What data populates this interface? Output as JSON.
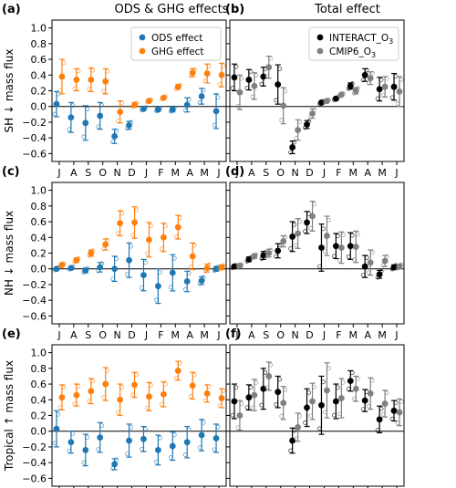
{
  "months": [
    "J",
    "A",
    "S",
    "O",
    "N",
    "D",
    "J",
    "F",
    "M",
    "A",
    "M",
    "J"
  ],
  "colors": {
    "ods": "#1f77b4",
    "ghg": "#ff7f0e",
    "interact": "#000000",
    "cmip6": "#808080"
  },
  "col_titles": {
    "left": "ODS & GHG effects",
    "right": "Total effect"
  },
  "legend_left": {
    "ods": "ODS effect",
    "ghg": "GHG effect"
  },
  "legend_right": {
    "interact": "INTERACT_O",
    "interact_sub": "3",
    "cmip6": "CMIP6_O",
    "cmip6_sub": "3"
  },
  "chart_data": [
    {
      "type": "scatter",
      "label": "(a)",
      "ylabel": "SH ↓ mass flux",
      "ylim": [
        -0.7,
        1.1
      ],
      "yticks": [
        -0.6,
        -0.4,
        -0.2,
        0.0,
        0.2,
        0.4,
        0.6,
        0.8,
        1.0
      ],
      "series": [
        {
          "name": "ODS effect",
          "means": [
            0.03,
            -0.14,
            -0.21,
            -0.12,
            -0.38,
            -0.24,
            -0.03,
            -0.04,
            -0.04,
            0.02,
            0.13,
            -0.06
          ],
          "err": [
            0.16,
            0.19,
            0.22,
            0.17,
            0.09,
            0.05,
            0.02,
            0.02,
            0.03,
            0.09,
            0.1,
            0.22
          ]
        },
        {
          "name": "GHG effect",
          "means": [
            0.38,
            0.34,
            0.34,
            0.32,
            -0.07,
            0.02,
            0.07,
            0.11,
            0.25,
            0.43,
            0.42,
            0.4
          ],
          "err": [
            0.22,
            0.14,
            0.15,
            0.16,
            0.14,
            0.03,
            0.02,
            0.02,
            0.03,
            0.05,
            0.12,
            0.15
          ]
        }
      ]
    },
    {
      "type": "scatter",
      "label": "(b)",
      "ylim": [
        -0.7,
        1.1
      ],
      "yticks": [
        -0.6,
        -0.4,
        -0.2,
        0.0,
        0.2,
        0.4,
        0.6,
        0.8,
        1.0
      ],
      "series": [
        {
          "name": "INTERACT_O3",
          "means": [
            0.37,
            0.34,
            0.38,
            0.28,
            -0.52,
            -0.23,
            0.05,
            0.1,
            0.26,
            0.4,
            0.22,
            0.25
          ],
          "err": [
            0.17,
            0.13,
            0.12,
            0.25,
            0.08,
            0.05,
            0.02,
            0.02,
            0.04,
            0.08,
            0.15,
            0.17
          ]
        },
        {
          "name": "CMIP6_O3",
          "means": [
            0.18,
            0.26,
            0.5,
            0.01,
            -0.3,
            -0.09,
            0.07,
            0.15,
            0.2,
            0.36,
            0.25,
            0.19
          ],
          "err": [
            0.22,
            0.17,
            0.14,
            0.23,
            0.13,
            0.06,
            0.02,
            0.02,
            0.04,
            0.08,
            0.13,
            0.19
          ]
        }
      ]
    },
    {
      "type": "scatter",
      "label": "(c)",
      "ylabel": "NH ↓ mass flux",
      "ylim": [
        -0.7,
        1.1
      ],
      "yticks": [
        -0.6,
        -0.4,
        -0.2,
        0.0,
        0.2,
        0.4,
        0.6,
        0.8,
        1.0
      ],
      "series": [
        {
          "name": "ODS effect",
          "means": [
            0.0,
            0.01,
            -0.02,
            0.02,
            0.0,
            0.11,
            -0.08,
            -0.22,
            -0.05,
            -0.16,
            -0.15,
            0.0
          ],
          "err": [
            0.02,
            0.02,
            0.03,
            0.06,
            0.16,
            0.22,
            0.2,
            0.22,
            0.23,
            0.13,
            0.05,
            0.03
          ]
        },
        {
          "name": "GHG effect",
          "means": [
            0.05,
            0.11,
            0.2,
            0.31,
            0.58,
            0.59,
            0.37,
            0.4,
            0.53,
            0.16,
            0.01,
            0.02
          ],
          "err": [
            0.02,
            0.03,
            0.04,
            0.07,
            0.16,
            0.2,
            0.22,
            0.18,
            0.15,
            0.17,
            0.05,
            0.03
          ]
        }
      ]
    },
    {
      "type": "scatter",
      "label": "(d)",
      "ylim": [
        -0.7,
        1.1
      ],
      "yticks": [
        -0.6,
        -0.4,
        -0.2,
        0.0,
        0.2,
        0.4,
        0.6,
        0.8,
        1.0
      ],
      "series": [
        {
          "name": "INTERACT_O3",
          "means": [
            0.03,
            0.12,
            0.17,
            0.23,
            0.41,
            0.59,
            0.27,
            0.29,
            0.29,
            0.03,
            -0.07,
            0.02
          ],
          "err": [
            0.02,
            0.03,
            0.05,
            0.09,
            0.19,
            0.14,
            0.3,
            0.16,
            0.17,
            0.14,
            0.05,
            0.03
          ]
        },
        {
          "name": "CMIP6_O3",
          "means": [
            0.04,
            0.16,
            0.2,
            0.35,
            0.45,
            0.67,
            0.42,
            0.27,
            0.28,
            0.08,
            0.1,
            0.03
          ],
          "err": [
            0.02,
            0.03,
            0.05,
            0.07,
            0.19,
            0.19,
            0.25,
            0.2,
            0.2,
            0.16,
            0.07,
            0.03
          ]
        }
      ]
    },
    {
      "type": "scatter",
      "label": "(e)",
      "ylabel": "Tropical ↑ mass flux",
      "ylim": [
        -0.7,
        1.1
      ],
      "yticks": [
        -0.6,
        -0.4,
        -0.2,
        0.0,
        0.2,
        0.4,
        0.6,
        0.8,
        1.0
      ],
      "series": [
        {
          "name": "ODS effect",
          "means": [
            0.03,
            -0.14,
            -0.24,
            -0.08,
            -0.42,
            -0.12,
            -0.1,
            -0.24,
            -0.19,
            -0.14,
            -0.05,
            -0.09
          ],
          "err": [
            0.23,
            0.14,
            0.2,
            0.19,
            0.07,
            0.21,
            0.16,
            0.19,
            0.18,
            0.2,
            0.2,
            0.18
          ]
        },
        {
          "name": "GHG effect",
          "means": [
            0.43,
            0.46,
            0.51,
            0.6,
            0.4,
            0.59,
            0.44,
            0.47,
            0.77,
            0.58,
            0.48,
            0.42
          ],
          "err": [
            0.16,
            0.14,
            0.16,
            0.21,
            0.2,
            0.16,
            0.18,
            0.16,
            0.12,
            0.17,
            0.11,
            0.12
          ]
        }
      ]
    },
    {
      "type": "scatter",
      "label": "(f)",
      "ylim": [
        -0.7,
        1.1
      ],
      "yticks": [
        -0.6,
        -0.4,
        -0.2,
        0.0,
        0.2,
        0.4,
        0.6,
        0.8,
        1.0
      ],
      "series": [
        {
          "name": "INTERACT_O3",
          "means": [
            0.38,
            0.43,
            0.54,
            0.5,
            -0.12,
            0.3,
            0.33,
            0.38,
            0.64,
            0.39,
            0.15,
            0.26
          ],
          "err": [
            0.22,
            0.16,
            0.26,
            0.2,
            0.16,
            0.24,
            0.37,
            0.22,
            0.13,
            0.14,
            0.17,
            0.13
          ]
        },
        {
          "name": "CMIP6_O3",
          "means": [
            0.2,
            0.46,
            0.7,
            0.36,
            0.05,
            0.38,
            0.52,
            0.42,
            0.54,
            0.48,
            0.35,
            0.24
          ],
          "err": [
            0.19,
            0.2,
            0.18,
            0.21,
            0.18,
            0.23,
            0.35,
            0.25,
            0.16,
            0.2,
            0.17,
            0.17
          ]
        }
      ]
    }
  ]
}
